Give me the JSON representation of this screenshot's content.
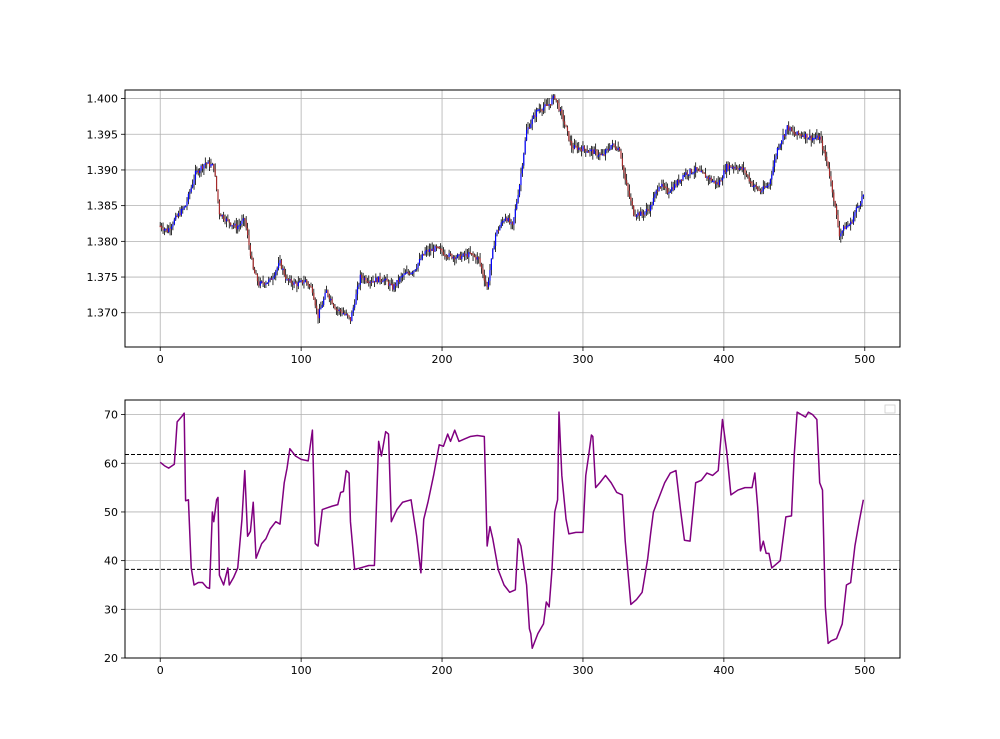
{
  "chart_data": [
    {
      "type": "candlestick",
      "title": "",
      "xlabel": "",
      "ylabel": "",
      "xlim": [
        -25,
        525
      ],
      "ylim": [
        1.3652,
        1.4012
      ],
      "x_ticks": [
        0,
        100,
        200,
        300,
        400,
        500
      ],
      "x_tick_labels": [
        "0",
        "100",
        "200",
        "300",
        "400",
        "500"
      ],
      "y_ticks": [
        1.37,
        1.375,
        1.38,
        1.385,
        1.39,
        1.395,
        1.4
      ],
      "y_tick_labels": [
        "1.370",
        "1.375",
        "1.380",
        "1.385",
        "1.390",
        "1.395",
        "1.400"
      ],
      "grid": true,
      "colors": {
        "up": "#0000ff",
        "down": "#a52a2a",
        "wick": "#000000"
      },
      "close_path": [
        [
          0,
          1.3822
        ],
        [
          5,
          1.3815
        ],
        [
          12,
          1.3835
        ],
        [
          18,
          1.385
        ],
        [
          25,
          1.3895
        ],
        [
          32,
          1.391
        ],
        [
          38,
          1.3905
        ],
        [
          42,
          1.384
        ],
        [
          47,
          1.383
        ],
        [
          54,
          1.382
        ],
        [
          60,
          1.383
        ],
        [
          66,
          1.376
        ],
        [
          70,
          1.374
        ],
        [
          78,
          1.3745
        ],
        [
          85,
          1.377
        ],
        [
          90,
          1.3745
        ],
        [
          97,
          1.374
        ],
        [
          103,
          1.3745
        ],
        [
          108,
          1.3732
        ],
        [
          112,
          1.3695
        ],
        [
          118,
          1.373
        ],
        [
          125,
          1.3705
        ],
        [
          130,
          1.37
        ],
        [
          135,
          1.369
        ],
        [
          142,
          1.375
        ],
        [
          150,
          1.3745
        ],
        [
          158,
          1.3748
        ],
        [
          165,
          1.3735
        ],
        [
          172,
          1.3752
        ],
        [
          180,
          1.376
        ],
        [
          188,
          1.3785
        ],
        [
          196,
          1.379
        ],
        [
          205,
          1.378
        ],
        [
          212,
          1.3778
        ],
        [
          220,
          1.3782
        ],
        [
          226,
          1.3775
        ],
        [
          232,
          1.3735
        ],
        [
          238,
          1.381
        ],
        [
          245,
          1.3835
        ],
        [
          250,
          1.382
        ],
        [
          255,
          1.388
        ],
        [
          260,
          1.3955
        ],
        [
          268,
          1.3985
        ],
        [
          275,
          1.399
        ],
        [
          280,
          1.4003
        ],
        [
          286,
          1.397
        ],
        [
          292,
          1.3932
        ],
        [
          300,
          1.393
        ],
        [
          308,
          1.3925
        ],
        [
          314,
          1.392
        ],
        [
          320,
          1.3935
        ],
        [
          326,
          1.393
        ],
        [
          330,
          1.3885
        ],
        [
          336,
          1.384
        ],
        [
          342,
          1.3838
        ],
        [
          348,
          1.3848
        ],
        [
          354,
          1.388
        ],
        [
          360,
          1.387
        ],
        [
          366,
          1.388
        ],
        [
          372,
          1.3895
        ],
        [
          380,
          1.39
        ],
        [
          388,
          1.389
        ],
        [
          396,
          1.388
        ],
        [
          402,
          1.3905
        ],
        [
          408,
          1.3905
        ],
        [
          414,
          1.39
        ],
        [
          420,
          1.388
        ],
        [
          426,
          1.387
        ],
        [
          432,
          1.388
        ],
        [
          438,
          1.393
        ],
        [
          445,
          1.396
        ],
        [
          450,
          1.395
        ],
        [
          456,
          1.395
        ],
        [
          462,
          1.3945
        ],
        [
          468,
          1.3945
        ],
        [
          474,
          1.3905
        ],
        [
          478,
          1.386
        ],
        [
          482,
          1.381
        ],
        [
          486,
          1.382
        ],
        [
          490,
          1.3825
        ],
        [
          494,
          1.3845
        ],
        [
          499,
          1.3865
        ]
      ],
      "range_extremes": {
        "high_max": 1.4007,
        "low_min": 1.367
      }
    },
    {
      "type": "line",
      "title": "",
      "xlabel": "",
      "ylabel": "",
      "xlim": [
        -25,
        525
      ],
      "ylim": [
        20,
        73
      ],
      "x_ticks": [
        0,
        100,
        200,
        300,
        400,
        500
      ],
      "x_tick_labels": [
        "0",
        "100",
        "200",
        "300",
        "400",
        "500"
      ],
      "y_ticks": [
        20,
        30,
        40,
        50,
        60,
        70
      ],
      "y_tick_labels": [
        "20",
        "30",
        "40",
        "50",
        "60",
        "70"
      ],
      "grid": true,
      "legend_placement": "top-right",
      "series": [
        {
          "color": "#800080",
          "points": [
            [
              0,
              60.2
            ],
            [
              3,
              59.5
            ],
            [
              6,
              59.0
            ],
            [
              10,
              59.8
            ],
            [
              12,
              68.5
            ],
            [
              15,
              69.5
            ],
            [
              17,
              70.3
            ],
            [
              18,
              52.3
            ],
            [
              20,
              52.5
            ],
            [
              22,
              38.5
            ],
            [
              24,
              35.0
            ],
            [
              27,
              35.5
            ],
            [
              30,
              35.5
            ],
            [
              33,
              34.5
            ],
            [
              35,
              34.3
            ],
            [
              37,
              50.0
            ],
            [
              38,
              48.0
            ],
            [
              40,
              52.5
            ],
            [
              41,
              53.0
            ],
            [
              42,
              37.0
            ],
            [
              45,
              35.0
            ],
            [
              48,
              38.5
            ],
            [
              49,
              35.0
            ],
            [
              52,
              36.5
            ],
            [
              55,
              38.5
            ],
            [
              58,
              48.5
            ],
            [
              60,
              58.5
            ],
            [
              62,
              45.0
            ],
            [
              64,
              46.0
            ],
            [
              66,
              52.0
            ],
            [
              68,
              40.5
            ],
            [
              72,
              43.5
            ],
            [
              75,
              44.5
            ],
            [
              78,
              46.5
            ],
            [
              82,
              48.0
            ],
            [
              85,
              47.5
            ],
            [
              88,
              56.0
            ],
            [
              90,
              59.0
            ],
            [
              92,
              63.0
            ],
            [
              96,
              61.5
            ],
            [
              100,
              60.8
            ],
            [
              105,
              60.5
            ],
            [
              108,
              66.8
            ],
            [
              110,
              43.5
            ],
            [
              112,
              43.0
            ],
            [
              115,
              50.5
            ],
            [
              118,
              50.8
            ],
            [
              122,
              51.2
            ],
            [
              126,
              51.5
            ],
            [
              128,
              54.0
            ],
            [
              130,
              54.2
            ],
            [
              132,
              58.5
            ],
            [
              134,
              58.0
            ],
            [
              135,
              48.0
            ],
            [
              138,
              38.2
            ],
            [
              142,
              38.5
            ],
            [
              148,
              39.0
            ],
            [
              152,
              39.0
            ],
            [
              155,
              64.5
            ],
            [
              157,
              61.5
            ],
            [
              160,
              66.5
            ],
            [
              162,
              66.0
            ],
            [
              164,
              48.0
            ],
            [
              168,
              50.5
            ],
            [
              172,
              52.0
            ],
            [
              178,
              52.5
            ],
            [
              182,
              45.0
            ],
            [
              185,
              37.5
            ],
            [
              187,
              48.5
            ],
            [
              190,
              52.0
            ],
            [
              194,
              57.5
            ],
            [
              198,
              63.8
            ],
            [
              201,
              63.5
            ],
            [
              204,
              66.0
            ],
            [
              206,
              64.5
            ],
            [
              209,
              66.8
            ],
            [
              212,
              64.5
            ],
            [
              216,
              65.0
            ],
            [
              220,
              65.5
            ],
            [
              225,
              65.7
            ],
            [
              230,
              65.5
            ],
            [
              232,
              43.0
            ],
            [
              234,
              47.0
            ],
            [
              236,
              44.5
            ],
            [
              240,
              38.0
            ],
            [
              244,
              35.0
            ],
            [
              248,
              33.5
            ],
            [
              252,
              34.0
            ],
            [
              254,
              44.5
            ],
            [
              256,
              43.0
            ],
            [
              260,
              35.0
            ],
            [
              262,
              26.0
            ],
            [
              263,
              25.0
            ],
            [
              264,
              22.0
            ],
            [
              268,
              25.0
            ],
            [
              272,
              27.0
            ],
            [
              274,
              31.5
            ],
            [
              276,
              30.5
            ],
            [
              278,
              38.0
            ],
            [
              280,
              50.0
            ],
            [
              282,
              52.5
            ],
            [
              283,
              70.5
            ],
            [
              285,
              57.5
            ],
            [
              288,
              48.5
            ],
            [
              290,
              45.5
            ],
            [
              295,
              45.8
            ],
            [
              300,
              45.8
            ],
            [
              302,
              57.5
            ],
            [
              304,
              61.5
            ],
            [
              306,
              65.8
            ],
            [
              307,
              65.5
            ],
            [
              309,
              55.0
            ],
            [
              312,
              56.0
            ],
            [
              316,
              57.5
            ],
            [
              320,
              56.0
            ],
            [
              324,
              54.0
            ],
            [
              328,
              53.5
            ],
            [
              330,
              44.0
            ],
            [
              334,
              31.0
            ],
            [
              338,
              32.0
            ],
            [
              342,
              33.5
            ],
            [
              346,
              40.5
            ],
            [
              348,
              45.5
            ],
            [
              350,
              50.0
            ],
            [
              354,
              53.0
            ],
            [
              358,
              56.0
            ],
            [
              362,
              58.0
            ],
            [
              366,
              58.5
            ],
            [
              369,
              51.0
            ],
            [
              372,
              44.2
            ],
            [
              376,
              44.0
            ],
            [
              380,
              56.0
            ],
            [
              384,
              56.5
            ],
            [
              388,
              58.0
            ],
            [
              392,
              57.5
            ],
            [
              396,
              58.5
            ],
            [
              399,
              69.0
            ],
            [
              402,
              62.5
            ],
            [
              405,
              53.5
            ],
            [
              410,
              54.5
            ],
            [
              415,
              55.0
            ],
            [
              420,
              55.0
            ],
            [
              422,
              58.0
            ],
            [
              424,
              51.0
            ],
            [
              426,
              42.0
            ],
            [
              428,
              44.0
            ],
            [
              430,
              41.5
            ],
            [
              432,
              41.5
            ],
            [
              434,
              38.5
            ],
            [
              436,
              39.0
            ],
            [
              440,
              40.0
            ],
            [
              444,
              49.0
            ],
            [
              448,
              49.2
            ],
            [
              450,
              62.0
            ],
            [
              452,
              70.5
            ],
            [
              455,
              70.0
            ],
            [
              458,
              69.5
            ],
            [
              460,
              70.5
            ],
            [
              463,
              70.0
            ],
            [
              466,
              69.0
            ],
            [
              468,
              56.0
            ],
            [
              470,
              54.5
            ],
            [
              472,
              30.5
            ],
            [
              474,
              23.0
            ],
            [
              476,
              23.5
            ],
            [
              480,
              24.0
            ],
            [
              484,
              27.0
            ],
            [
              487,
              35.0
            ],
            [
              490,
              35.5
            ],
            [
              493,
              43.0
            ],
            [
              496,
              48.0
            ],
            [
              499,
              52.5
            ]
          ]
        }
      ],
      "reference_lines": [
        61.8,
        38.2
      ],
      "reference_line_style": "dashed"
    }
  ]
}
